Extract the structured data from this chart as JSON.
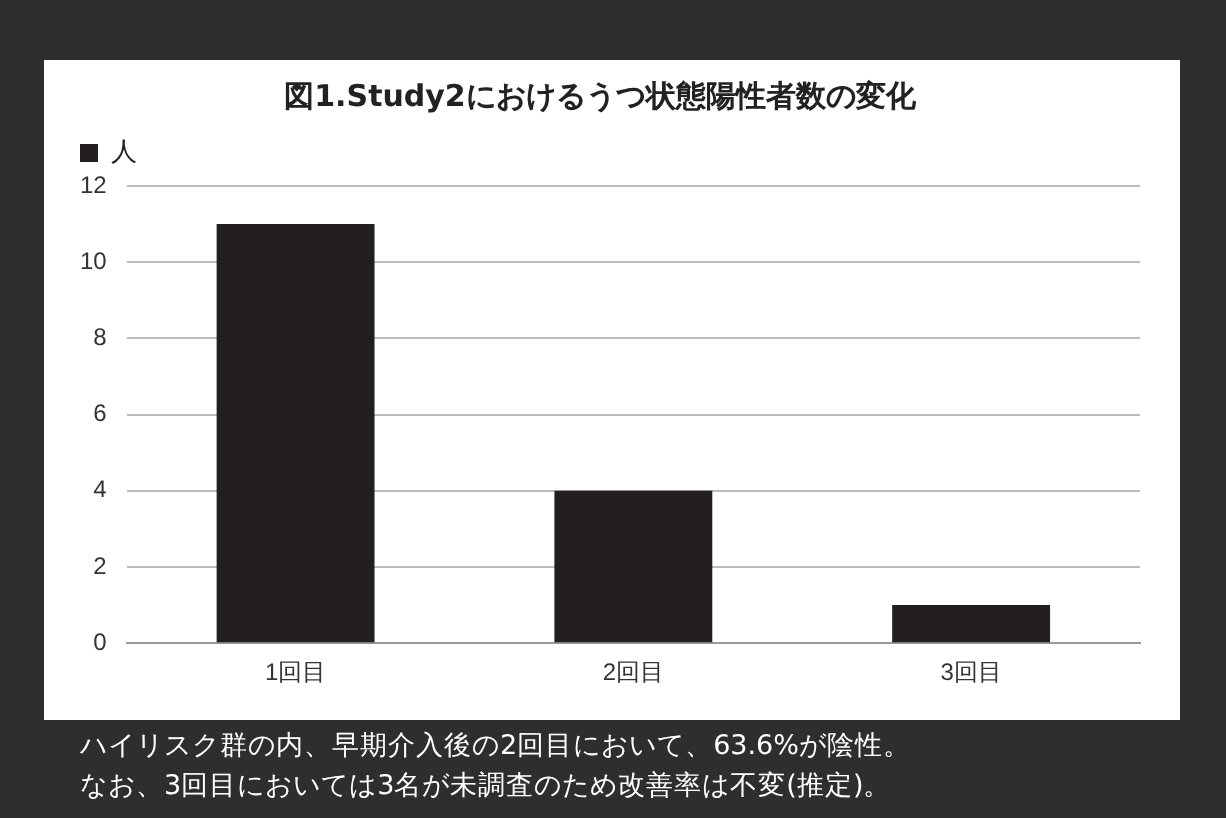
{
  "chart_data": {
    "type": "bar",
    "title": "図1.Study2におけるうつ状態陽性者数の変化",
    "categories": [
      "1回目",
      "2回目",
      "3回目"
    ],
    "series": [
      {
        "name": "人",
        "color": "#231f20",
        "values": [
          11,
          4,
          1
        ]
      }
    ],
    "ylim": [
      0,
      12
    ],
    "yticks": [
      0,
      2,
      4,
      6,
      8,
      10,
      12
    ],
    "grid": "y",
    "legend": "top left",
    "annotations": [
      "ハイリスク群の内、早期介入後の2回目において、63.6%が陰性。",
      "なお、3回目においては3名が未調査のため改善率は不変(推定)。"
    ]
  }
}
